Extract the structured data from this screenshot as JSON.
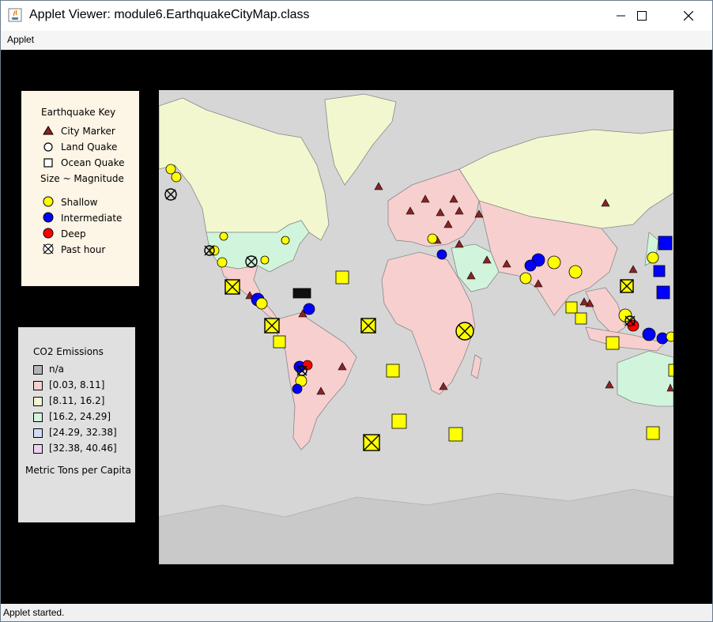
{
  "window": {
    "title": "Applet Viewer: module6.EarthquakeCityMap.class"
  },
  "menu": {
    "applet_label": "Applet"
  },
  "status": {
    "text": "Applet started."
  },
  "earthquake_key": {
    "title": "Earthquake Key",
    "city_marker": "City Marker",
    "land_quake": "Land Quake",
    "ocean_quake": "Ocean Quake",
    "size_note": "Size ~ Magnitude",
    "shallow": "Shallow",
    "intermediate": "Intermediate",
    "deep": "Deep",
    "past_hour": "Past hour",
    "colors": {
      "city": "#8b2323",
      "shallow": "#ffff00",
      "intermediate": "#0000ff",
      "deep": "#ff0000"
    }
  },
  "co2_key": {
    "title": "CO2 Emissions",
    "items": [
      {
        "label": "n/a",
        "color": "#b4b4b4"
      },
      {
        "label": "[0.03, 8.11]",
        "color": "#f7cfcf"
      },
      {
        "label": "[8.11, 16.2]",
        "color": "#f3f7cf"
      },
      {
        "label": "[16.2, 24.29]",
        "color": "#d1f5dc"
      },
      {
        "label": "[24.29, 32.38]",
        "color": "#cfdcf3"
      },
      {
        "label": "[32.38, 40.46]",
        "color": "#efcff3"
      }
    ],
    "units": "Metric Tons per Capita"
  }
}
